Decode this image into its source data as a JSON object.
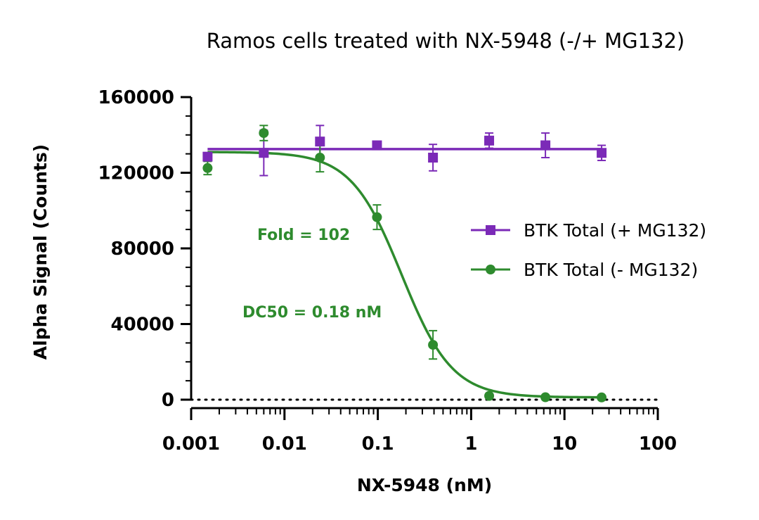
{
  "chart_data": {
    "type": "scatter",
    "title": "Ramos cells treated with NX-5948 (-/+ MG132)",
    "xlabel": "NX-5948 (nM)",
    "ylabel": "Alpha Signal (Counts)",
    "x_scale": "log",
    "xlim": [
      0.001,
      100
    ],
    "ylim": [
      0,
      160000
    ],
    "x_ticks": [
      0.001,
      0.01,
      0.1,
      1,
      10,
      100
    ],
    "x_tick_labels": [
      "0.001",
      "0.01",
      "0.1",
      "1",
      "10",
      "100"
    ],
    "y_ticks": [
      0,
      40000,
      80000,
      120000,
      160000
    ],
    "y_tick_labels": [
      "0",
      "40000",
      "80000",
      "120000",
      "160000"
    ],
    "baseline": 0,
    "grid": false,
    "legend_position": "right",
    "series": [
      {
        "name": "BTK Total (+ MG132)",
        "color": "#7b2ab7",
        "marker": "square",
        "x": [
          0.0015,
          0.006,
          0.024,
          0.098,
          0.39,
          1.56,
          6.25,
          25
        ],
        "y": [
          128500,
          130500,
          136500,
          134500,
          128000,
          137000,
          134500,
          130500
        ],
        "error": [
          2000,
          12000,
          8500,
          1500,
          7000,
          4000,
          6500,
          4000
        ],
        "fit": {
          "model": "constant",
          "value": 132500
        }
      },
      {
        "name": "BTK Total (- MG132)",
        "color": "#2e8b2e",
        "marker": "circle",
        "x": [
          0.0015,
          0.006,
          0.024,
          0.098,
          0.39,
          1.56,
          6.25,
          25
        ],
        "y": [
          122500,
          141000,
          128000,
          96500,
          29000,
          2000,
          1300,
          1200
        ],
        "error": [
          3500,
          4000,
          7500,
          6500,
          7500,
          1000,
          600,
          500
        ],
        "fit": {
          "model": "4PL",
          "top": 131000,
          "bottom": 1200,
          "ec50": 0.18,
          "hill": -1.6
        }
      }
    ],
    "annotations": [
      {
        "text": "Fold = 102",
        "color": "#2e8b2e"
      },
      {
        "text": "DC50 = 0.18 nM",
        "color": "#2e8b2e"
      }
    ]
  }
}
